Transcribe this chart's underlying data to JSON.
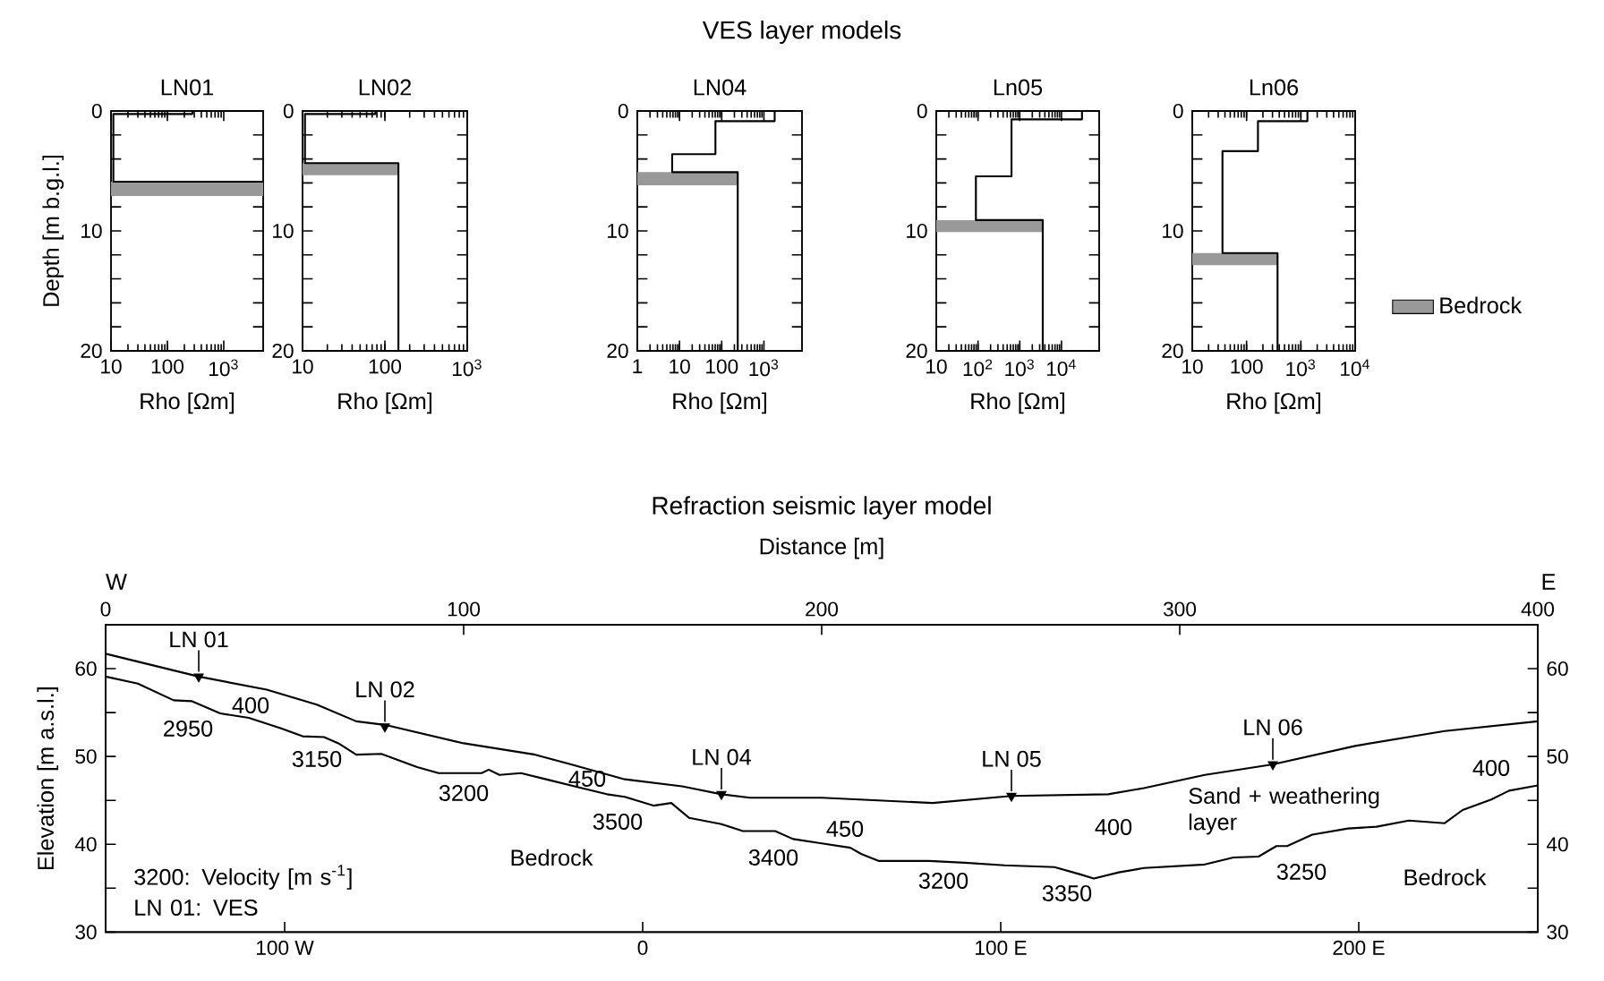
{
  "chart_data": [
    {
      "type": "line",
      "subtitle": "LN01",
      "xlabel": "Rho [Ωm]",
      "ylabel": "Depth [m b.g.l.]",
      "log": "x",
      "xlim": [
        10,
        5000
      ],
      "xticks": [
        10,
        100,
        {
          "value": 1000,
          "label": "10$^{3}$"
        }
      ],
      "ylim": [
        20,
        0
      ],
      "yticks": [
        0,
        {
          "value": 2,
          "label": null
        },
        {
          "value": 4,
          "label": null
        },
        {
          "value": 6,
          "label": null
        },
        {
          "value": 8,
          "label": null
        },
        10,
        {
          "value": 12,
          "label": null
        },
        {
          "value": 14,
          "label": null
        },
        {
          "value": 16,
          "label": null
        },
        {
          "value": 18,
          "label": null
        },
        20
      ],
      "series": [
        {
          "color": "#000000",
          "x": [
            277,
            277,
            11,
            11,
            5000
          ],
          "values": [
            0,
            0.25,
            0.25,
            5.9,
            5.9
          ]
        }
      ],
      "bands": [
        {
          "axis": "y",
          "from": 5.9,
          "to": 7.1,
          "color": "#999999"
        }
      ]
    },
    {
      "type": "line",
      "subtitle": "LN02",
      "xlabel": "Rho [Ωm]",
      "log": "x",
      "xlim": [
        10,
        1000
      ],
      "xticks": [
        10,
        100,
        {
          "value": 1000,
          "label": "10$^{3}$"
        }
      ],
      "ylim": [
        20,
        0
      ],
      "yticks": [
        0,
        {
          "value": 2,
          "label": null
        },
        {
          "value": 4,
          "label": null
        },
        {
          "value": 6,
          "label": null
        },
        {
          "value": 8,
          "label": null
        },
        10,
        {
          "value": 12,
          "label": null
        },
        {
          "value": 14,
          "label": null
        },
        {
          "value": 16,
          "label": null
        },
        {
          "value": 18,
          "label": null
        },
        20
      ],
      "series": [
        {
          "color": "#000000",
          "x": [
            77,
            77,
            10.7,
            10.7,
            146,
            146
          ],
          "values": [
            0,
            0.25,
            0.25,
            4.35,
            4.35,
            20
          ]
        }
      ],
      "bands": [
        {
          "axis": "y",
          "from": 4.35,
          "to": 5.35,
          "color": "#999999"
        }
      ]
    },
    {
      "type": "line",
      "title": "VES layer models",
      "subtitle": "LN04",
      "xlabel": "Rho [Ωm]",
      "log": "x",
      "xlim": [
        1,
        8000
      ],
      "xticks": [
        1,
        10,
        100,
        {
          "value": 1000,
          "label": "10$^{3}$"
        }
      ],
      "ylim": [
        20,
        0
      ],
      "yticks": [
        0,
        {
          "value": 2,
          "label": null
        },
        {
          "value": 4,
          "label": null
        },
        {
          "value": 6,
          "label": null
        },
        {
          "value": 8,
          "label": null
        },
        10,
        {
          "value": 12,
          "label": null
        },
        {
          "value": 14,
          "label": null
        },
        {
          "value": 16,
          "label": null
        },
        {
          "value": 18,
          "label": null
        },
        20
      ],
      "series": [
        {
          "color": "#000000",
          "x": [
            1800,
            1800,
            71,
            71,
            6.7,
            6.7,
            240,
            240
          ],
          "values": [
            0,
            0.85,
            0.85,
            3.6,
            3.6,
            5.1,
            5.1,
            20
          ]
        }
      ],
      "bands": [
        {
          "axis": "y",
          "from": 5.1,
          "to": 6.2,
          "color": "#999999"
        }
      ]
    },
    {
      "type": "line",
      "subtitle": "Ln05",
      "xlabel": "Rho [Ωm]",
      "log": "x",
      "xlim": [
        10,
        80000
      ],
      "xticks": [
        10,
        {
          "value": 100,
          "label": "10$^{2}$"
        },
        {
          "value": 1000,
          "label": "10$^{3}$"
        },
        {
          "value": 10000,
          "label": "10$^{4}$"
        }
      ],
      "ylim": [
        20,
        0
      ],
      "yticks": [
        0,
        {
          "value": 2,
          "label": null
        },
        {
          "value": 4,
          "label": null
        },
        {
          "value": 6,
          "label": null
        },
        {
          "value": 8,
          "label": null
        },
        10,
        {
          "value": 12,
          "label": null
        },
        {
          "value": 14,
          "label": null
        },
        {
          "value": 16,
          "label": null
        },
        {
          "value": 18,
          "label": null
        },
        20
      ],
      "series": [
        {
          "color": "#000000",
          "x": [
            31000,
            31000,
            635,
            635,
            89,
            89,
            3560,
            3560
          ],
          "values": [
            0,
            0.7,
            0.7,
            5.45,
            5.45,
            9.1,
            9.1,
            20
          ]
        }
      ],
      "bands": [
        {
          "axis": "y",
          "from": 9.1,
          "to": 10.1,
          "color": "#999999"
        }
      ]
    },
    {
      "type": "line",
      "subtitle": "Ln06",
      "xlabel": "Rho [Ωm]",
      "log": "x",
      "xlim": [
        10,
        10000
      ],
      "xticks": [
        10,
        100,
        {
          "value": 1000,
          "label": "10$^{3}$"
        },
        {
          "value": 10000,
          "label": "10$^{4}$"
        }
      ],
      "ylim": [
        20,
        0
      ],
      "yticks": [
        0,
        {
          "value": 2,
          "label": null
        },
        {
          "value": 4,
          "label": null
        },
        {
          "value": 6,
          "label": null
        },
        {
          "value": 8,
          "label": null
        },
        10,
        {
          "value": 12,
          "label": null
        },
        {
          "value": 14,
          "label": null
        },
        {
          "value": 16,
          "label": null
        },
        {
          "value": 18,
          "label": null
        },
        20
      ],
      "series": [
        {
          "color": "#000000",
          "x": [
            1320,
            1320,
            162,
            162,
            36,
            36,
            372,
            372
          ],
          "values": [
            0,
            0.85,
            0.85,
            3.35,
            3.35,
            11.85,
            11.85,
            20
          ]
        }
      ],
      "bands": [
        {
          "axis": "y",
          "from": 11.85,
          "to": 12.85,
          "label": "Bedrock",
          "color": "#999999"
        }
      ],
      "legend": "right"
    },
    {
      "type": "line",
      "title": "Refraction seismic layer model",
      "xlabel": "Distance [m]",
      "ylabel": "Elevation [m a.s.l.]",
      "xlim": [
        0,
        400
      ],
      "xticks": [
        0,
        100,
        200,
        300,
        400
      ],
      "x2lim": [
        -150,
        250
      ],
      "x2ticks": [
        {
          "value": -100,
          "label": "100 W"
        },
        0,
        {
          "value": 100,
          "label": "100 E"
        },
        {
          "value": 200,
          "label": "200 E"
        }
      ],
      "ylim": [
        30,
        65
      ],
      "yticks": [
        30,
        {
          "value": 35,
          "label": null
        },
        40,
        {
          "value": 45,
          "label": null
        },
        50,
        {
          "value": 55,
          "label": null
        },
        60
      ],
      "y2lim": [
        30,
        65
      ],
      "y2ticks": [
        30,
        {
          "value": 35,
          "label": null
        },
        40,
        {
          "value": 45,
          "label": null
        },
        50,
        {
          "value": 55,
          "label": null
        },
        60
      ],
      "series": [
        {
          "color": "#000000",
          "x": [
            0,
            26,
            45,
            59,
            70,
            78,
            100,
            120,
            130,
            145,
            161,
            172,
            180,
            200,
            231,
            253,
            280,
            290,
            307,
            326,
            349,
            374,
            400
          ],
          "values": [
            61.7,
            59.1,
            57.6,
            55.9,
            54.0,
            53.6,
            51.5,
            50.2,
            49.1,
            47.4,
            46.6,
            45.7,
            45.3,
            45.3,
            44.7,
            45.5,
            45.7,
            46.4,
            47.9,
            49.1,
            51.2,
            52.9,
            54.0
          ]
        },
        {
          "color": "#000000",
          "x": [
            0,
            9,
            19,
            24,
            32,
            40,
            49,
            55,
            61,
            65,
            70,
            77,
            87,
            93,
            105,
            107,
            110,
            116,
            123,
            133,
            140,
            145,
            153,
            158,
            163,
            172,
            178,
            187,
            192,
            200,
            208,
            211,
            216,
            230,
            240,
            251,
            265,
            272,
            276,
            283,
            290,
            307,
            315,
            322,
            327,
            330,
            337,
            347,
            355,
            364,
            374,
            379,
            387,
            392,
            400
          ],
          "values": [
            59.1,
            58.3,
            56.4,
            56.3,
            54.9,
            54.4,
            53.2,
            52.3,
            52.2,
            51.5,
            50.2,
            50.3,
            48.8,
            48.1,
            48.1,
            48.5,
            47.9,
            48.1,
            47.4,
            46.4,
            45.7,
            45.4,
            44.4,
            44.7,
            43.0,
            42.3,
            41.5,
            41.5,
            40.6,
            40.1,
            39.6,
            38.9,
            38.1,
            38.1,
            37.9,
            37.6,
            37.4,
            36.6,
            36.1,
            36.8,
            37.3,
            37.7,
            38.5,
            38.6,
            39.8,
            39.8,
            41.1,
            41.8,
            42.0,
            42.7,
            42.4,
            43.9,
            45.1,
            46.1,
            46.7
          ]
        },
        {
          "type": "scatter",
          "marker": "triangle",
          "color": "#000000",
          "x": [
            26,
            78,
            172,
            253,
            326
          ],
          "values": [
            59.1,
            53.4,
            45.7,
            45.5,
            49.1
          ],
          "value_labels": [
            "LN 01",
            "LN 02",
            "LN 04",
            "LN 05",
            "LN 06"
          ]
        }
      ],
      "annotations": [
        "W",
        "E",
        "3200: Velocity [m s$^{-1}$]",
        "LN 01: VES",
        "400",
        "2950",
        "3150",
        "3200",
        "450",
        "3500",
        "Bedrock",
        "3400",
        "450",
        "3200",
        "3350",
        "400",
        "Sand + weathering layer",
        "3250",
        "Bedrock",
        "400"
      ]
    }
  ]
}
